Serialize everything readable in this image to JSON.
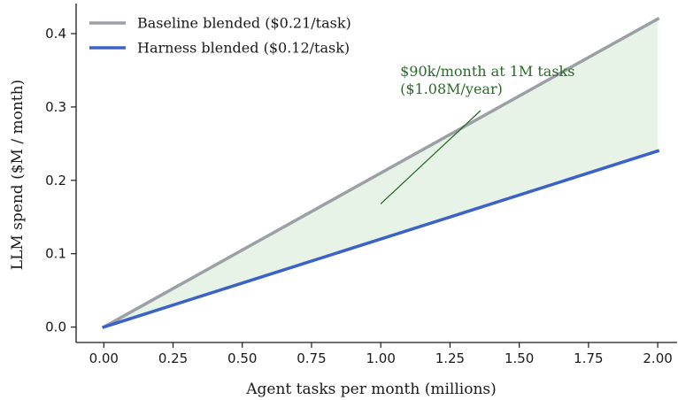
{
  "chart_data": {
    "type": "line",
    "xlabel": "Agent tasks per month (millions)",
    "ylabel": "LLM spend ($M / month)",
    "xlim": [
      -0.1,
      2.07
    ],
    "ylim": [
      -0.021,
      0.441
    ],
    "xticks": [
      0.0,
      0.25,
      0.5,
      0.75,
      1.0,
      1.25,
      1.5,
      1.75,
      2.0
    ],
    "xtick_labels": [
      "0.00",
      "0.25",
      "0.50",
      "0.75",
      "1.00",
      "1.25",
      "1.50",
      "1.75",
      "2.00"
    ],
    "yticks": [
      0.0,
      0.1,
      0.2,
      0.3,
      0.4
    ],
    "ytick_labels": [
      "0.0",
      "0.1",
      "0.2",
      "0.3",
      "0.4"
    ],
    "grid": false,
    "legend_placement": "top-left",
    "series": [
      {
        "name": "Baseline blended ($0.21/task)",
        "color": "#9ca0a6",
        "x": [
          0.0,
          2.0
        ],
        "y": [
          0.0,
          0.42
        ]
      },
      {
        "name": "Harness blended ($0.12/task)",
        "color": "#3a62c8",
        "x": [
          0.0,
          2.0
        ],
        "y": [
          0.0,
          0.24
        ]
      }
    ],
    "fill_between": {
      "x": [
        0.0,
        2.0
      ],
      "y_upper": [
        0.0,
        0.42
      ],
      "y_lower": [
        0.0,
        0.24
      ],
      "color": "#e8f3e8"
    },
    "annotation": {
      "lines": [
        "$90k/month at 1M tasks",
        "($1.08M/year)"
      ],
      "color": "#2a6a2a",
      "arrow_tip": [
        1.0,
        0.168
      ],
      "arrow_tail": [
        1.36,
        0.295
      ],
      "text_anchor": [
        1.07,
        0.342
      ]
    }
  }
}
